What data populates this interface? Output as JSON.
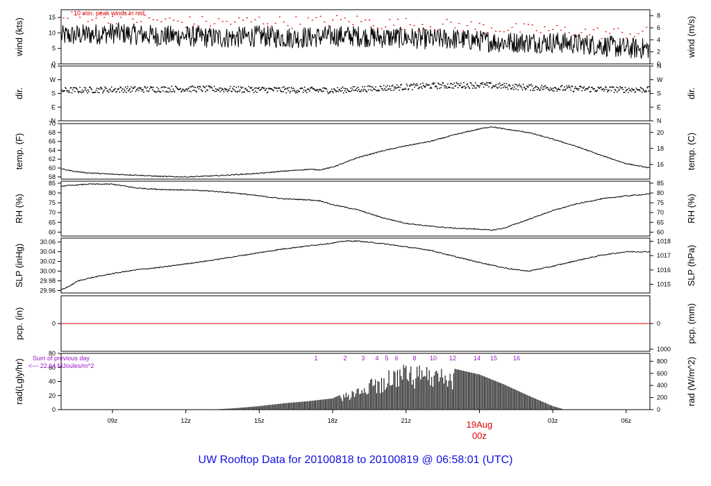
{
  "chart_data": {
    "type": "line",
    "caption": "UW Rooftop Data for 20100818  to  20100819 @ 06:58:01  (UTC)",
    "time_axis": {
      "range_hours": [
        6.9,
        30.97
      ],
      "ticks": [
        {
          "hour": 9,
          "label": "09z"
        },
        {
          "hour": 12,
          "label": "12z"
        },
        {
          "hour": 15,
          "label": "15z"
        },
        {
          "hour": 18,
          "label": "18z"
        },
        {
          "hour": 21,
          "label": "21z"
        },
        {
          "hour": 24,
          "label": "00z"
        },
        {
          "hour": 27,
          "label": "03z"
        },
        {
          "hour": 30,
          "label": "06z"
        }
      ],
      "date_marker": {
        "hour": 24,
        "label": "19Aug",
        "sublabel": "00z"
      }
    },
    "panels": [
      {
        "key": "wind",
        "left_label": "wind (kts)",
        "right_label": "wind (m/s)",
        "left_range": [
          0,
          17.5
        ],
        "left_ticks": [
          "0",
          "5",
          "10",
          "15"
        ],
        "right_ticks": [
          {
            "v": 0,
            "l": "0"
          },
          {
            "v": 2,
            "l": "2"
          },
          {
            "v": 4,
            "l": "4"
          },
          {
            "v": 6,
            "l": "6"
          },
          {
            "v": 8,
            "l": "8"
          }
        ],
        "right_factor": 1.9438,
        "annotation": "10 min. peak winds in red",
        "series": [
          {
            "name": "wind speed",
            "x": [
              6.9,
              8,
              9,
              10,
              11,
              12,
              13,
              14,
              15,
              16,
              17,
              18,
              19,
              20,
              21,
              22,
              23,
              24,
              25,
              26,
              27,
              28,
              29,
              30,
              30.97
            ],
            "y": [
              9,
              9.5,
              10,
              9.5,
              9,
              9,
              8.5,
              8.5,
              9,
              8.5,
              8.5,
              9,
              9,
              8.5,
              8.5,
              8,
              8,
              7.5,
              7,
              7,
              7,
              6.5,
              6,
              5,
              5
            ]
          },
          {
            "name": "peak wind",
            "x": [
              6.9,
              8,
              9,
              10,
              11,
              12,
              13,
              14,
              15,
              16,
              17,
              18,
              19,
              20,
              21,
              22,
              23,
              24,
              25,
              26,
              27,
              28,
              29,
              30,
              30.97
            ],
            "y": [
              15,
              15.5,
              15,
              14.5,
              14,
              13.5,
              13.5,
              13.5,
              14,
              13.5,
              13.5,
              14,
              14,
              13,
              13,
              12.5,
              12.5,
              12,
              11.5,
              11,
              11,
              10.5,
              10,
              10,
              10
            ]
          }
        ]
      },
      {
        "key": "dir",
        "left_label": "dir.",
        "right_label": "dir.",
        "left_range": [
          0,
          360
        ],
        "left_ticks": [
          {
            "v": 0,
            "l": "N"
          },
          {
            "v": 90,
            "l": "E"
          },
          {
            "v": 180,
            "l": "S"
          },
          {
            "v": 270,
            "l": "W"
          },
          {
            "v": 360,
            "l": "N"
          }
        ],
        "series": [
          {
            "name": "wind direction",
            "x": [
              6.9,
              9,
              12,
              15,
              18,
              20,
              22,
              24,
              26,
              28,
              30,
              30.97
            ],
            "y": [
              200,
              205,
              210,
              205,
              200,
              215,
              230,
              235,
              220,
              210,
              205,
              205
            ]
          }
        ]
      },
      {
        "key": "temp",
        "left_label": "temp. (F)",
        "right_label": "temp. (C)",
        "left_range": [
          57.5,
          70
        ],
        "left_ticks": [
          "58",
          "60",
          "62",
          "64",
          "66",
          "68",
          "70"
        ],
        "right_ticks": [
          {
            "v": 16,
            "l": "16"
          },
          {
            "v": 18,
            "l": "18"
          },
          {
            "v": 20,
            "l": "20"
          }
        ],
        "series": [
          {
            "name": "temperature",
            "x": [
              6.9,
              7.5,
              8,
              9,
              10,
              11,
              12,
              13,
              14,
              15,
              16,
              17,
              17.5,
              18,
              18.5,
              19,
              20,
              21,
              22,
              23,
              24,
              24.5,
              25,
              26,
              27,
              28,
              29,
              30,
              30.97
            ],
            "y": [
              59.8,
              59.2,
              58.9,
              58.6,
              58.4,
              58.1,
              58.0,
              58.2,
              58.5,
              58.8,
              59.3,
              59.7,
              59.6,
              60.2,
              61.2,
              62.3,
              63.8,
              65.0,
              66.0,
              67.5,
              68.8,
              69.3,
              68.8,
              68.0,
              66.5,
              64.8,
              62.8,
              61.0,
              60.0
            ]
          }
        ]
      },
      {
        "key": "rh",
        "left_label": "RH (%)",
        "right_label": "RH (%)",
        "left_range": [
          58,
          86
        ],
        "left_ticks": [
          "60",
          "65",
          "70",
          "75",
          "80",
          "85"
        ],
        "right_ticks": [
          {
            "v": 60,
            "l": "60"
          },
          {
            "v": 65,
            "l": "65"
          },
          {
            "v": 70,
            "l": "70"
          },
          {
            "v": 75,
            "l": "75"
          },
          {
            "v": 80,
            "l": "80"
          },
          {
            "v": 85,
            "l": "85"
          }
        ],
        "series": [
          {
            "name": "relative humidity",
            "x": [
              6.9,
              8,
              9,
              10,
              11,
              12,
              13,
              14,
              15,
              16,
              17,
              17.5,
              18,
              19,
              20,
              21,
              22,
              23,
              24,
              24.5,
              25,
              26,
              27,
              28,
              29,
              30,
              30.97
            ],
            "y": [
              83.5,
              84.5,
              84.5,
              82.5,
              81.8,
              81.5,
              81.0,
              80.0,
              78.5,
              77.0,
              76.5,
              76.0,
              74.0,
              71.5,
              67.5,
              64.5,
              63.0,
              62.0,
              61.5,
              61.0,
              62.0,
              66.5,
              71.0,
              74.5,
              77.0,
              78.5,
              79.5
            ]
          }
        ]
      },
      {
        "key": "slp",
        "left_label": "SLP (inHg)",
        "right_label": "SLP (hPa)",
        "left_range": [
          29.955,
          30.068
        ],
        "left_ticks": [
          "29.96",
          "29.98",
          "30.00",
          "30.02",
          "30.04",
          "30.06"
        ],
        "right_ticks": [
          {
            "v": 1015,
            "l": "1015"
          },
          {
            "v": 1016,
            "l": "1016"
          },
          {
            "v": 1017,
            "l": "1017"
          },
          {
            "v": 1018,
            "l": "1018"
          }
        ],
        "right_factor": 0.02953,
        "series": [
          {
            "name": "sea level pressure",
            "x": [
              6.9,
              7.2,
              7.6,
              8,
              9,
              10,
              11,
              12,
              13,
              14,
              15,
              16,
              17,
              18,
              18.5,
              19,
              20,
              21,
              22,
              23,
              24,
              25,
              25.5,
              26,
              27,
              28,
              29,
              30,
              30.97
            ],
            "y": [
              29.962,
              29.968,
              29.98,
              29.985,
              29.995,
              30.003,
              30.008,
              30.015,
              30.022,
              30.03,
              30.038,
              30.046,
              30.052,
              30.058,
              30.062,
              30.062,
              30.057,
              30.05,
              30.043,
              30.03,
              30.018,
              30.007,
              30.003,
              30.0,
              30.01,
              30.022,
              30.033,
              30.04,
              30.04
            ]
          }
        ]
      },
      {
        "key": "pcp",
        "left_label": "pcp. (in)",
        "right_label": "pcp. (mm)",
        "left_range": [
          -1,
          1
        ],
        "left_ticks": [
          "0"
        ],
        "right_ticks": [
          {
            "v": 0,
            "l": "0"
          }
        ],
        "series": [
          {
            "name": "precipitation",
            "x": [
              6.9,
              30.97
            ],
            "y": [
              0,
              0
            ]
          }
        ]
      },
      {
        "key": "rad",
        "left_label": "rad(Lgly/hr)",
        "right_label": "rad (W/m^2)",
        "left_range": [
          0,
          80
        ],
        "left_ticks": [
          "0",
          "20",
          "40",
          "60",
          "80"
        ],
        "right_ticks": [
          {
            "v": 0,
            "l": "0"
          },
          {
            "v": 200,
            "l": "200"
          },
          {
            "v": 400,
            "l": "400"
          },
          {
            "v": 600,
            "l": "600"
          },
          {
            "v": 800,
            "l": "800"
          },
          {
            "v": 1000,
            "l": "1000"
          }
        ],
        "right_factor": 11.63,
        "sum_label": "Sum of previous day",
        "sum_value": "<--- 22.64 MJoules/m^2",
        "hour_marks": [
          "1",
          "2",
          "3",
          "4",
          "5",
          "6",
          "8",
          "10",
          "12",
          "14",
          "15",
          "16"
        ],
        "series": [
          {
            "name": "solar radiation",
            "x": [
              13.0,
              14,
              15,
              16,
              17,
              18,
              18.5,
              19,
              20,
              20.5,
              21,
              22,
              23,
              24,
              25,
              26,
              27,
              27.5
            ],
            "y": [
              0,
              2,
              5,
              9,
              12,
              16,
              24,
              35,
              50,
              62,
              65,
              63,
              58,
              50,
              36,
              20,
              5,
              0
            ]
          }
        ]
      }
    ]
  }
}
